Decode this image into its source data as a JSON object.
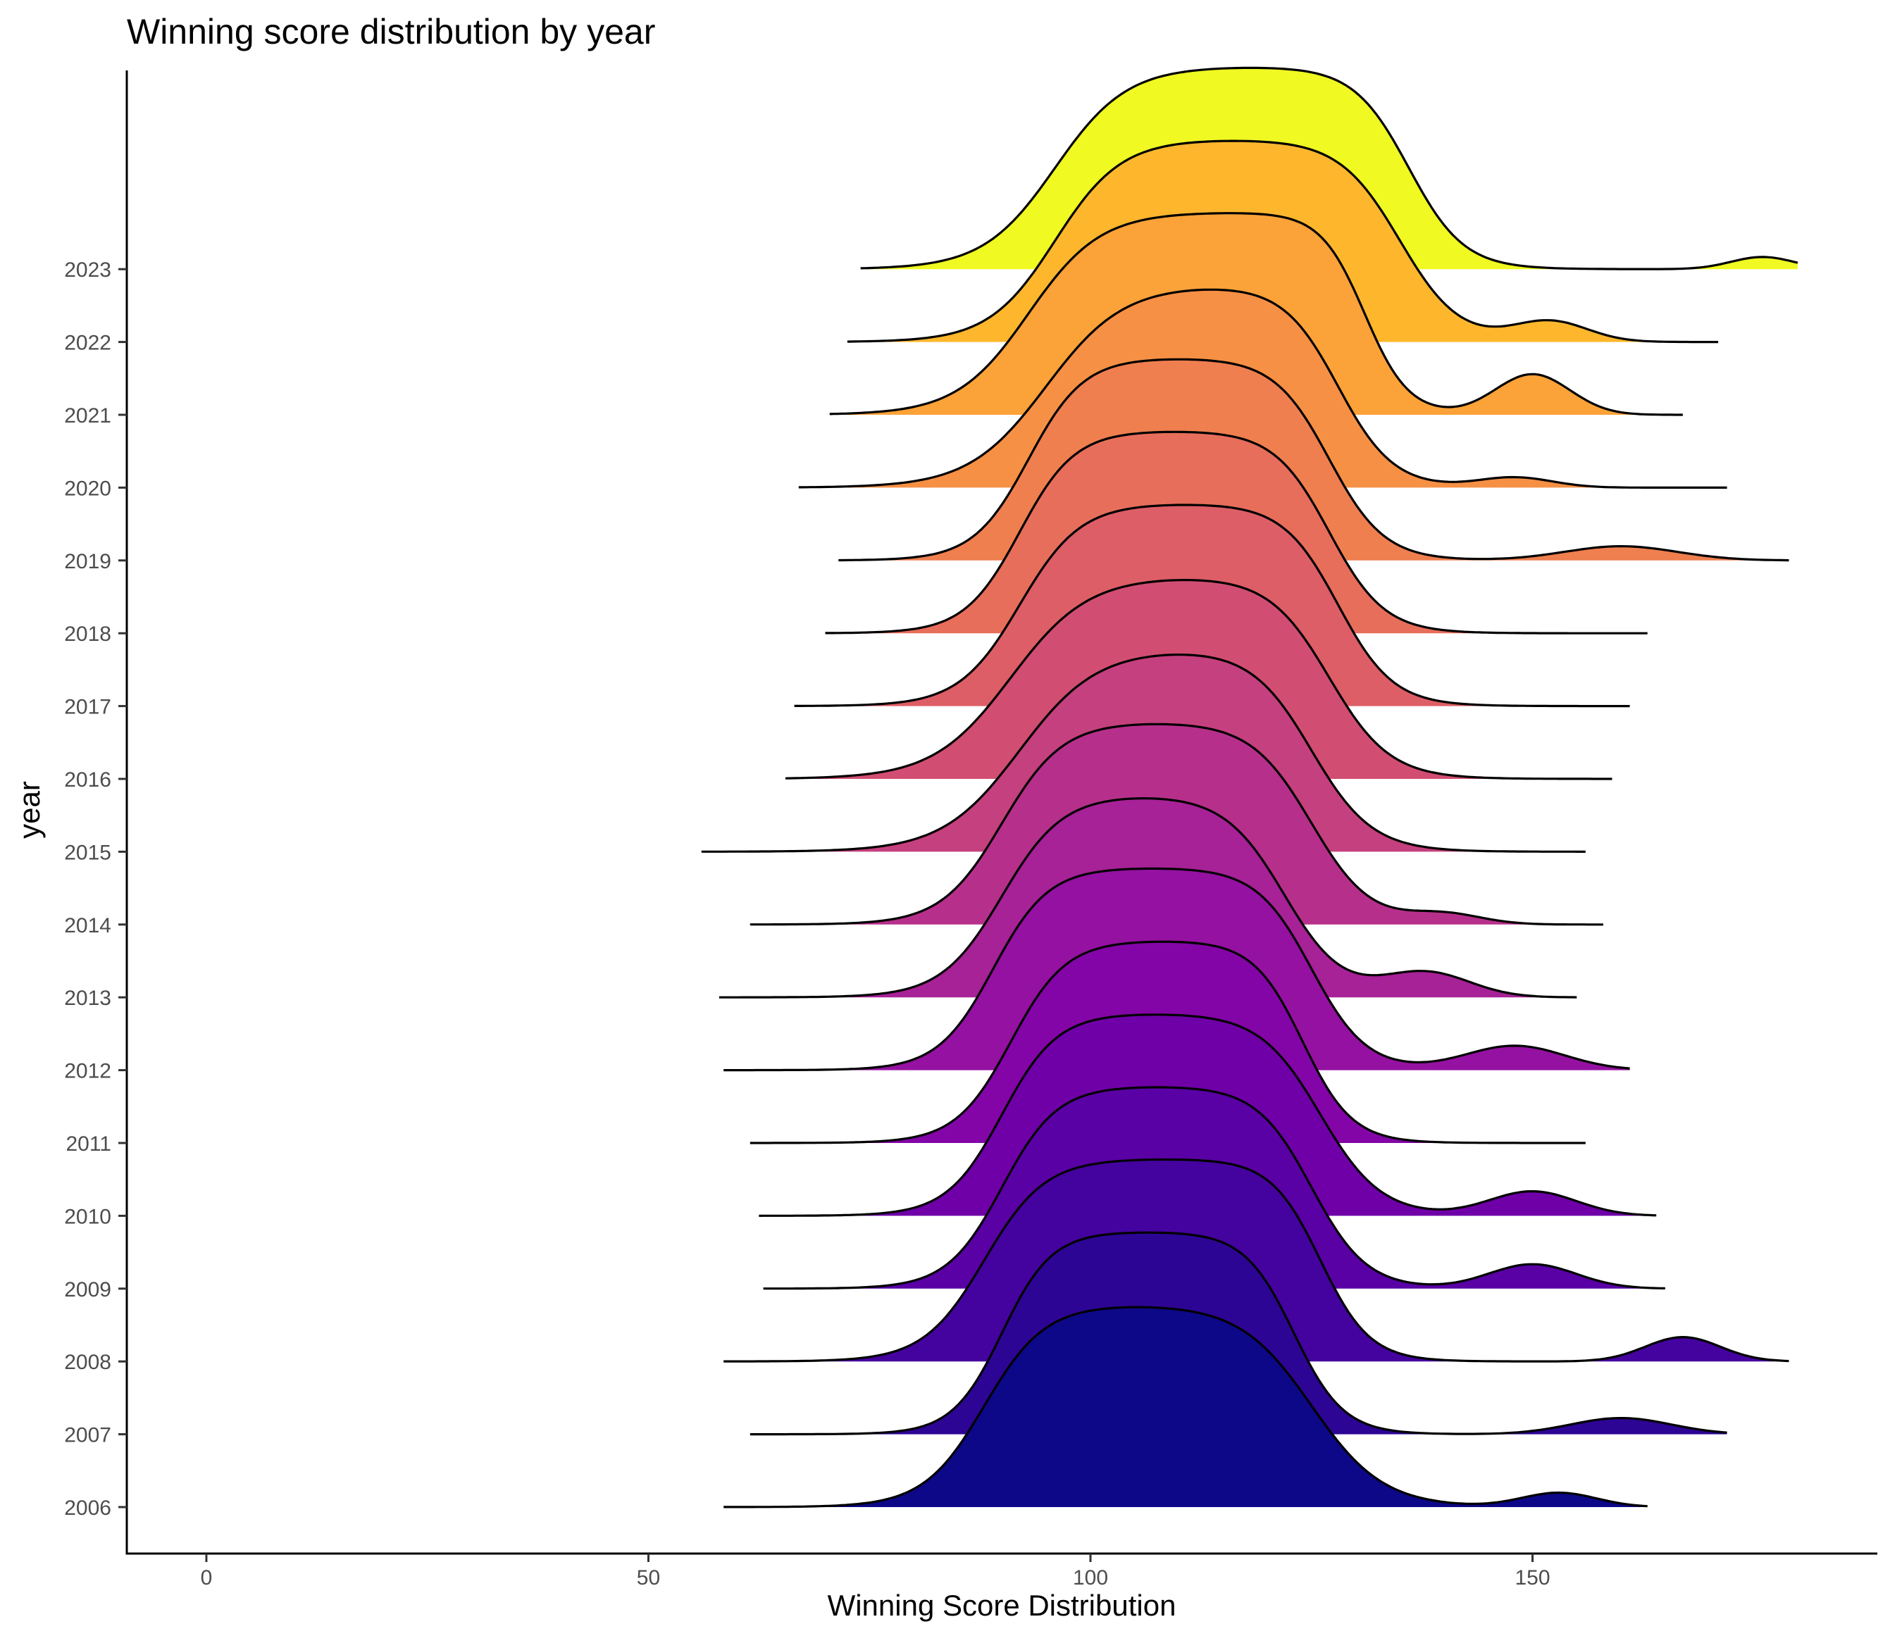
{
  "chart_data": {
    "type": "ridgeline",
    "title": "Winning score distribution by year",
    "xlabel": "Winning Score Distribution",
    "ylabel": "year",
    "xlim": [
      -9,
      189
    ],
    "x_ticks": [
      0,
      50,
      100,
      150
    ],
    "grid": false,
    "legend": "none",
    "series": [
      {
        "name": "2006",
        "color": "#0d0887",
        "range": [
          58.5,
          163
        ],
        "plateau": [
          88,
          125
        ],
        "rise": 11,
        "fall": 13,
        "height": 1.0,
        "extra": {
          "x": 153,
          "h": 0.07,
          "w": 6
        }
      },
      {
        "name": "2007",
        "color": "#2d0594",
        "range": [
          61.5,
          172
        ],
        "plateau": [
          90,
          123
        ],
        "rise": 9,
        "fall": 9,
        "height": 1.0,
        "extra": {
          "x": 160,
          "h": 0.08,
          "w": 8
        }
      },
      {
        "name": "2008",
        "color": "#44039e",
        "range": [
          58.5,
          179
        ],
        "plateau": [
          88,
          126
        ],
        "rise": 11,
        "fall": 9,
        "height": 1.0,
        "extra": {
          "x": 167,
          "h": 0.12,
          "w": 6
        }
      },
      {
        "name": "2009",
        "color": "#5901a5",
        "range": [
          63,
          165
        ],
        "plateau": [
          90,
          125
        ],
        "rise": 10,
        "fall": 10,
        "height": 1.0,
        "extra": {
          "x": 150,
          "h": 0.12,
          "w": 7
        }
      },
      {
        "name": "2010",
        "color": "#6f00a8",
        "range": [
          62.5,
          164
        ],
        "plateau": [
          90,
          126
        ],
        "rise": 10,
        "fall": 11,
        "height": 1.0,
        "extra": {
          "x": 150,
          "h": 0.12,
          "w": 7
        }
      },
      {
        "name": "2011",
        "color": "#8305a7",
        "range": [
          61.5,
          156
        ],
        "plateau": [
          91,
          124
        ],
        "rise": 10,
        "fall": 9,
        "height": 1.0,
        "extra": {
          "x": 130,
          "h": 0.0,
          "w": 6
        }
      },
      {
        "name": "2012",
        "color": "#9511a1",
        "range": [
          58.5,
          161
        ],
        "plateau": [
          89,
          125
        ],
        "rise": 10,
        "fall": 10,
        "height": 1.0,
        "extra": {
          "x": 148,
          "h": 0.12,
          "w": 8
        }
      },
      {
        "name": "2013",
        "color": "#a72197",
        "range": [
          58,
          155
        ],
        "plateau": [
          90,
          122
        ],
        "rise": 11,
        "fall": 11,
        "height": 1.0,
        "extra": {
          "x": 138,
          "h": 0.12,
          "w": 7
        }
      },
      {
        "name": "2014",
        "color": "#b6308b",
        "range": [
          61.5,
          158
        ],
        "plateau": [
          90,
          125
        ],
        "rise": 11,
        "fall": 11,
        "height": 1.0,
        "extra": {
          "x": 140,
          "h": 0.05,
          "w": 6
        }
      },
      {
        "name": "2015",
        "color": "#c5407e",
        "range": [
          56,
          156
        ],
        "plateau": [
          92,
          125
        ],
        "rise": 14,
        "fall": 11,
        "height": 1.0,
        "extra": {
          "x": 140,
          "h": 0.0,
          "w": 6
        }
      },
      {
        "name": "2016",
        "color": "#d14e72",
        "range": [
          65.5,
          159
        ],
        "plateau": [
          91,
          127
        ],
        "rise": 14,
        "fall": 11,
        "height": 1.0,
        "extra": {
          "x": 145,
          "h": 0.0,
          "w": 6
        }
      },
      {
        "name": "2017",
        "color": "#dd5e66",
        "range": [
          66.5,
          161
        ],
        "plateau": [
          92,
          128
        ],
        "rise": 11,
        "fall": 10,
        "height": 1.0,
        "extra": {
          "x": 145,
          "h": 0.0,
          "w": 6
        }
      },
      {
        "name": "2018",
        "color": "#e76e5b",
        "range": [
          70,
          163
        ],
        "plateau": [
          92,
          127
        ],
        "rise": 10,
        "fall": 10,
        "height": 1.0,
        "extra": {
          "x": 150,
          "h": 0.0,
          "w": 6
        }
      },
      {
        "name": "2019",
        "color": "#ef7f4f",
        "range": [
          71.5,
          179
        ],
        "plateau": [
          93,
          127
        ],
        "rise": 10,
        "fall": 10,
        "height": 1.0,
        "extra": {
          "x": 160,
          "h": 0.07,
          "w": 9
        }
      },
      {
        "name": "2020",
        "color": "#f69044",
        "range": [
          67,
          172
        ],
        "plateau": [
          95,
          128
        ],
        "rise": 14,
        "fall": 10,
        "height": 1.0,
        "extra": {
          "x": 148,
          "h": 0.05,
          "w": 6
        }
      },
      {
        "name": "2021",
        "color": "#fba238",
        "range": [
          70.5,
          167
        ],
        "plateau": [
          93,
          131
        ],
        "rise": 13,
        "fall": 8,
        "height": 1.0,
        "extra": {
          "x": 150,
          "h": 0.2,
          "w": 6
        }
      },
      {
        "name": "2022",
        "color": "#feb72d",
        "range": [
          72.5,
          171
        ],
        "plateau": [
          96,
          135
        ],
        "rise": 12,
        "fall": 11,
        "height": 1.0,
        "extra": {
          "x": 152,
          "h": 0.1,
          "w": 6
        }
      },
      {
        "name": "2023",
        "color": "#f0f921",
        "range": [
          74,
          180
        ],
        "plateau": [
          96,
          136
        ],
        "rise": 13,
        "fall": 10,
        "height": 1.0,
        "extra": {
          "x": 176,
          "h": 0.06,
          "w": 5
        }
      }
    ]
  }
}
